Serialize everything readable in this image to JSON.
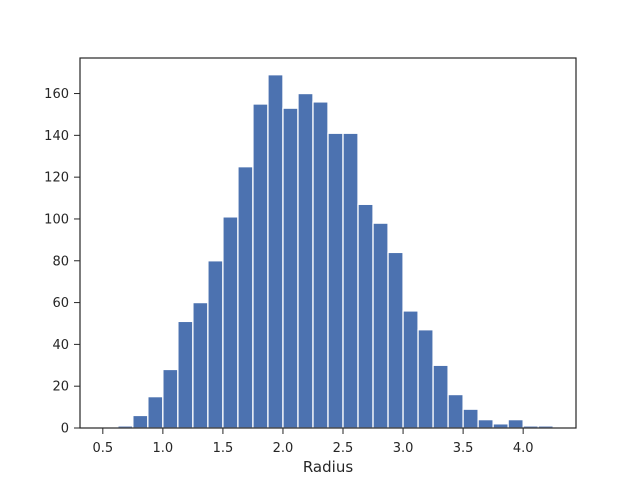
{
  "chart_data": {
    "type": "bar",
    "subtype": "histogram",
    "title": "",
    "xlabel": "Radius",
    "ylabel": "",
    "xlim": [
      0.31,
      4.44
    ],
    "ylim": [
      0,
      177
    ],
    "xticks": [
      0.5,
      1.0,
      1.5,
      2.0,
      2.5,
      3.0,
      3.5,
      4.0
    ],
    "xtick_labels": [
      "0.5",
      "1.0",
      "1.5",
      "2.0",
      "2.5",
      "3.0",
      "3.5",
      "4.0"
    ],
    "yticks": [
      0,
      20,
      40,
      60,
      80,
      100,
      120,
      140,
      160
    ],
    "ytick_labels": [
      "0",
      "20",
      "40",
      "60",
      "80",
      "100",
      "120",
      "140",
      "160"
    ],
    "grid": false,
    "bar_color": "#4c72b0",
    "bin_edges": [
      0.5,
      0.625,
      0.75,
      0.875,
      1.0,
      1.125,
      1.25,
      1.375,
      1.5,
      1.625,
      1.75,
      1.875,
      2.0,
      2.125,
      2.25,
      2.375,
      2.5,
      2.625,
      2.75,
      2.875,
      3.0,
      3.125,
      3.25,
      3.375,
      3.5,
      3.625,
      3.75,
      3.875,
      4.0,
      4.125,
      4.25
    ],
    "values": [
      0,
      1,
      6,
      15,
      28,
      51,
      60,
      80,
      101,
      125,
      155,
      169,
      153,
      160,
      156,
      141,
      141,
      107,
      98,
      84,
      56,
      47,
      30,
      16,
      9,
      4,
      2,
      4,
      1,
      1
    ]
  }
}
